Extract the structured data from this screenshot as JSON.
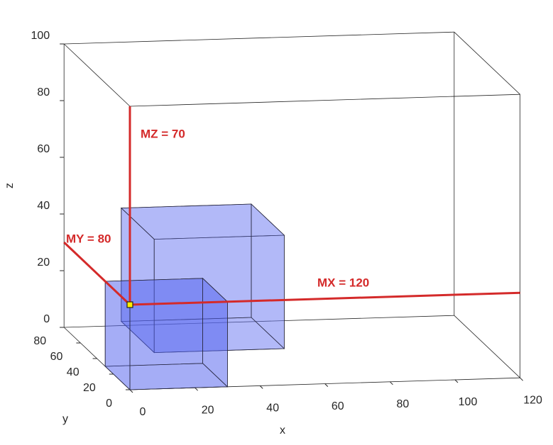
{
  "chart_data": {
    "type": "box3d",
    "xlabel": "x",
    "ylabel": "y",
    "zlabel": "z",
    "xlim": [
      0,
      120
    ],
    "ylim": [
      0,
      80
    ],
    "zlim": [
      0,
      100
    ],
    "xticks": [
      0,
      20,
      40,
      60,
      80,
      100,
      120
    ],
    "yticks": [
      0,
      20,
      40,
      60,
      80
    ],
    "zticks": [
      0,
      20,
      40,
      60,
      80,
      100
    ],
    "boxes": [
      {
        "x": [
          10,
          50
        ],
        "y": [
          10,
          50
        ],
        "z": [
          10,
          50
        ],
        "color": "#6a78f2"
      },
      {
        "x": [
          0,
          30
        ],
        "y": [
          0,
          30
        ],
        "z": [
          0,
          30
        ],
        "color": "#4f5ff0"
      }
    ],
    "point": {
      "x": 0,
      "y": 0,
      "z": 30,
      "color": "#ffee00"
    },
    "line_color": "#d42a2a",
    "annotations": [
      "MZ = 70",
      "MY = 80",
      "MX = 120"
    ]
  }
}
